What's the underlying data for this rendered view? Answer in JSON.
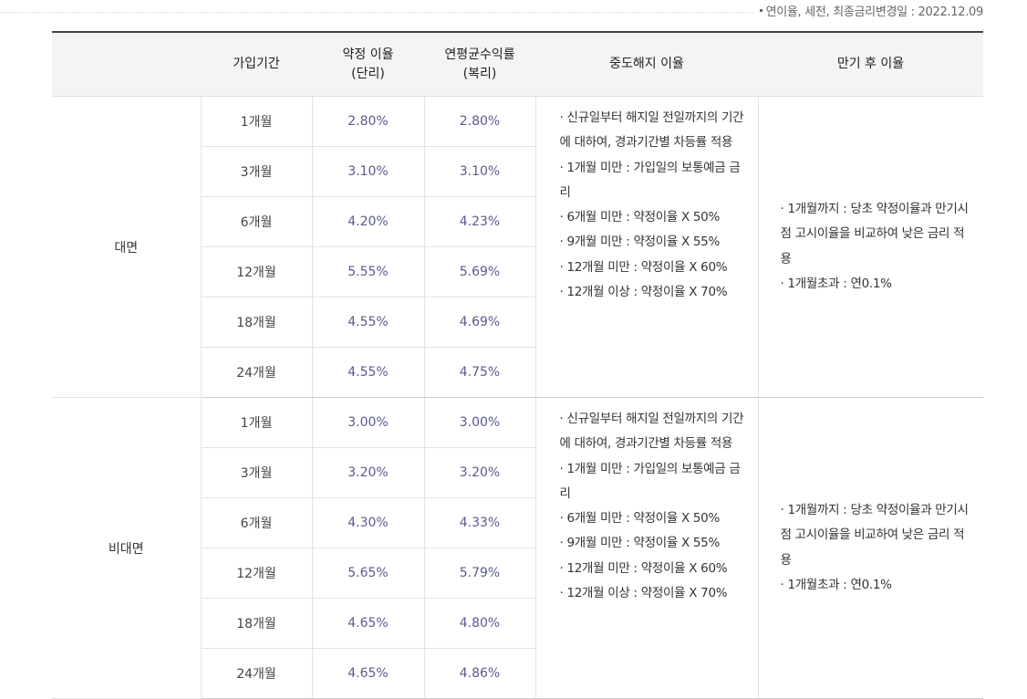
{
  "notice": "연이율, 세전, 최종금리변경일 : 2022.12.09",
  "headers": {
    "channel": "",
    "period": "가입기간",
    "rate_line1": "약정 이율",
    "rate_line2": "(단리)",
    "avg_line1": "연평균수익률",
    "avg_line2": "(복리)",
    "early": "중도해지 이율",
    "after": "만기 후 이율"
  },
  "groups": [
    {
      "channel": "대면",
      "rows": [
        {
          "period": "1개월",
          "rate": "2.80%",
          "avg": "2.80%"
        },
        {
          "period": "3개월",
          "rate": "3.10%",
          "avg": "3.10%"
        },
        {
          "period": "6개월",
          "rate": "4.20%",
          "avg": "4.23%"
        },
        {
          "period": "12개월",
          "rate": "5.55%",
          "avg": "5.69%"
        },
        {
          "period": "18개월",
          "rate": "4.55%",
          "avg": "4.69%"
        },
        {
          "period": "24개월",
          "rate": "4.55%",
          "avg": "4.75%"
        }
      ],
      "early_lines": [
        "· 신규일부터 해지일 전일까지의 기간에 대하여, 경과기간별 차등률 적용",
        "· 1개월 미만 : 가입일의 보통예금 금리",
        "· 6개월 미만 : 약정이율 X 50%",
        "· 9개월 미만 : 약정이율 X 55%",
        "· 12개월 미만 : 약정이율 X 60%",
        "· 12개월 이상 : 약정이율 X 70%"
      ],
      "after_lines": [
        "· 1개월까지 : 당초 약정이율과 만기시점 고시이율을 비교하여 낮은 금리 적용",
        "· 1개월초과 : 연0.1%"
      ]
    },
    {
      "channel": "비대면",
      "rows": [
        {
          "period": "1개월",
          "rate": "3.00%",
          "avg": "3.00%"
        },
        {
          "period": "3개월",
          "rate": "3.20%",
          "avg": "3.20%"
        },
        {
          "period": "6개월",
          "rate": "4.30%",
          "avg": "4.33%"
        },
        {
          "period": "12개월",
          "rate": "5.65%",
          "avg": "5.79%"
        },
        {
          "period": "18개월",
          "rate": "4.65%",
          "avg": "4.80%"
        },
        {
          "period": "24개월",
          "rate": "4.65%",
          "avg": "4.86%"
        }
      ],
      "early_lines": [
        "· 신규일부터 해지일 전일까지의 기간에 대하여, 경과기간별 차등률 적용",
        "· 1개월 미만 : 가입일의 보통예금 금리",
        "· 6개월 미만 : 약정이율 X 50%",
        "· 9개월 미만 : 약정이율 X 55%",
        "· 12개월 미만 : 약정이율 X 60%",
        "· 12개월 이상 : 약정이율 X 70%"
      ],
      "after_lines": [
        "· 1개월까지 : 당초 약정이율과 만기시점 고시이율을 비교하여 낮은 금리 적용",
        "· 1개월초과 : 연0.1%"
      ]
    }
  ]
}
